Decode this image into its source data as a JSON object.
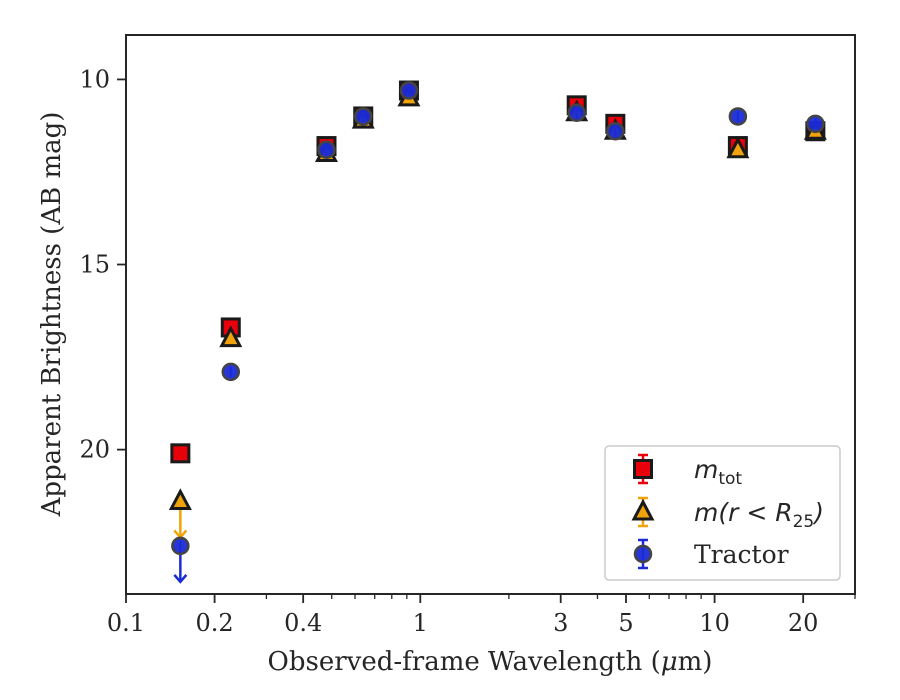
{
  "chart_data": {
    "type": "scatter",
    "xlabel_prefix": "Observed-frame Wavelength (",
    "xlabel_unit_mu": "μ",
    "xlabel_unit_rest": "m)",
    "ylabel": "Apparent Brightness (AB mag)",
    "xscale": "log",
    "xlim": [
      0.1,
      30
    ],
    "ylim": [
      23.9,
      8.8
    ],
    "y_inverted": true,
    "grid": false,
    "legend_position": "lower-right",
    "x_ticks": [
      {
        "value": 0.1,
        "label": "0.1"
      },
      {
        "value": 0.2,
        "label": "0.2"
      },
      {
        "value": 0.4,
        "label": "0.4"
      },
      {
        "value": 1,
        "label": "1"
      },
      {
        "value": 3,
        "label": "3"
      },
      {
        "value": 5,
        "label": "5"
      },
      {
        "value": 10,
        "label": "10"
      },
      {
        "value": 20,
        "label": "20"
      }
    ],
    "y_ticks": [
      {
        "value": 10,
        "label": "10"
      },
      {
        "value": 15,
        "label": "15"
      },
      {
        "value": 20,
        "label": "20"
      }
    ],
    "series": [
      {
        "legend_math": "m",
        "legend_sub": "tot",
        "marker": "square",
        "color": "#e8000b",
        "edge": "#1a1a1a",
        "err_color": "#e8000b",
        "points": [
          {
            "x": 0.153,
            "y": 20.1
          },
          {
            "x": 0.227,
            "y": 16.7
          },
          {
            "x": 0.48,
            "y": 11.8
          },
          {
            "x": 0.64,
            "y": 11.0
          },
          {
            "x": 0.915,
            "y": 10.3
          },
          {
            "x": 3.4,
            "y": 10.7
          },
          {
            "x": 4.6,
            "y": 11.2
          },
          {
            "x": 12.0,
            "y": 11.8
          },
          {
            "x": 22.0,
            "y": 11.4
          }
        ]
      },
      {
        "legend_math": "m(r < R",
        "legend_sub": "25",
        "legend_tail": ")",
        "marker": "triangle",
        "color": "#f0a30a",
        "edge": "#1a1a1a",
        "err_color": "#f0a30a",
        "points": [
          {
            "x": 0.153,
            "y": 21.4,
            "upper_limit": true
          },
          {
            "x": 0.227,
            "y": 17.0
          },
          {
            "x": 0.48,
            "y": 12.0
          },
          {
            "x": 0.64,
            "y": 11.1
          },
          {
            "x": 0.915,
            "y": 10.5
          },
          {
            "x": 3.4,
            "y": 10.9
          },
          {
            "x": 4.6,
            "y": 11.4
          },
          {
            "x": 12.0,
            "y": 11.9
          },
          {
            "x": 22.0,
            "y": 11.4
          }
        ]
      },
      {
        "name": "Tractor",
        "marker": "circle",
        "color": "#1a2bd6",
        "edge": "#444444",
        "err_color": "#1a2bd6",
        "points": [
          {
            "x": 0.153,
            "y": 22.6,
            "upper_limit": true
          },
          {
            "x": 0.227,
            "y": 17.9
          },
          {
            "x": 0.48,
            "y": 11.9
          },
          {
            "x": 0.64,
            "y": 11.0
          },
          {
            "x": 0.915,
            "y": 10.3
          },
          {
            "x": 3.4,
            "y": 10.9
          },
          {
            "x": 4.6,
            "y": 11.4
          },
          {
            "x": 12.0,
            "y": 11.0
          },
          {
            "x": 22.0,
            "y": 11.2
          }
        ]
      }
    ]
  }
}
